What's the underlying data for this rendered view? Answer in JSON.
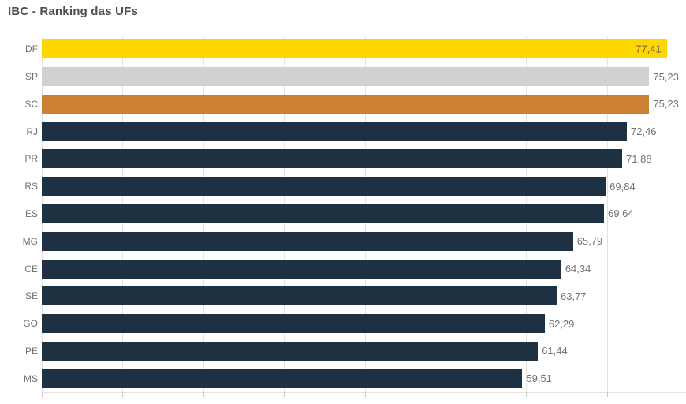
{
  "title": "IBC - Ranking das UFs",
  "chart_data": {
    "type": "bar",
    "orientation": "horizontal",
    "title": "IBC - Ranking das UFs",
    "categories": [
      "DF",
      "SP",
      "SC",
      "RJ",
      "PR",
      "RS",
      "ES",
      "MG",
      "CE",
      "SE",
      "GO",
      "PE",
      "MS"
    ],
    "values": [
      77.41,
      75.23,
      75.23,
      72.46,
      71.88,
      69.84,
      69.64,
      65.79,
      64.34,
      63.77,
      62.29,
      61.44,
      59.51
    ],
    "value_labels": [
      "77,41",
      "75,23",
      "75,23",
      "72,46",
      "71,88",
      "69,84",
      "69,64",
      "65,79",
      "64,34",
      "63,77",
      "62,29",
      "61,44",
      "59,51"
    ],
    "bar_colors": [
      "#ffd600",
      "#d0d2d2",
      "#cc8033",
      "#1e3142",
      "#1e3142",
      "#1e3142",
      "#1e3142",
      "#1e3142",
      "#1e3142",
      "#1e3142",
      "#1e3142",
      "#1e3142",
      "#1e3142"
    ],
    "colors": {
      "highlight_yellow": "#ffd600",
      "neutral_gray": "#d0d2d2",
      "highlight_orange": "#cc8033",
      "default_navy": "#1e3142",
      "value_label": "#737373",
      "value_label_inside": "#646464",
      "category_label": "#6f7374",
      "gridline": "#e3e3e3"
    },
    "xlim": [
      0,
      80
    ],
    "grid_step": 10,
    "grid": true,
    "legend": false,
    "xlabel": "",
    "ylabel": ""
  }
}
